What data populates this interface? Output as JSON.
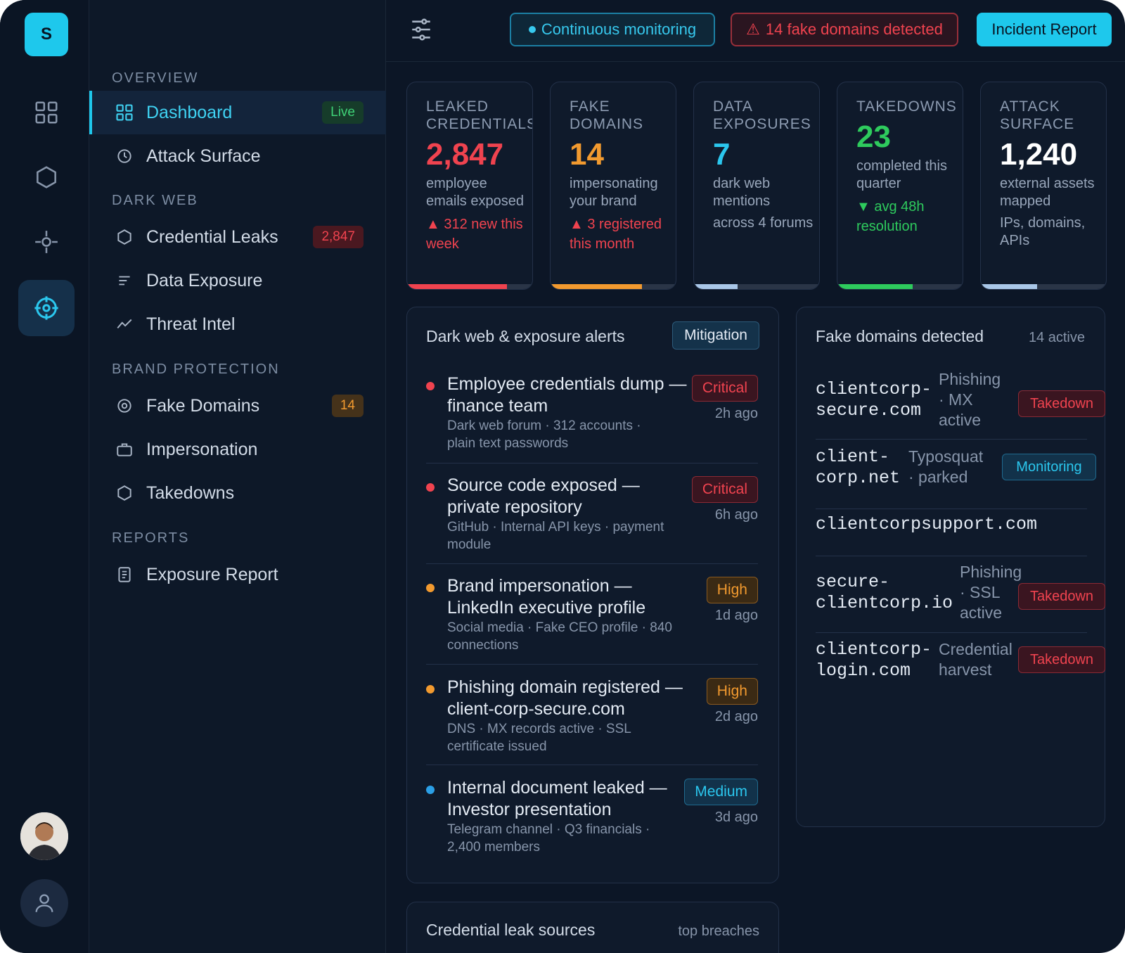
{
  "app": {
    "logo_letter": "S"
  },
  "sidebar": {
    "sections": [
      "OVERVIEW",
      "DARK WEB",
      "BRAND PROTECTION",
      "REPORTS"
    ],
    "items": [
      {
        "label": "Dashboard",
        "badge": "Live"
      },
      {
        "label": "Attack Surface"
      },
      {
        "label": "Credential Leaks",
        "badge": "2,847"
      },
      {
        "label": "Data Exposure"
      },
      {
        "label": "Threat Intel"
      },
      {
        "label": "Fake Domains",
        "badge": "14"
      },
      {
        "label": "Impersonation"
      },
      {
        "label": "Takedowns"
      },
      {
        "label": "Exposure Report"
      }
    ]
  },
  "topbar": {
    "monitoring": "Continuous monitoring",
    "fake_alert": "14 fake domains detected",
    "report_button": "Incident Report"
  },
  "stats": [
    {
      "title": "LEAKED CREDENTIALS",
      "value": "2,847",
      "sub": "employee emails exposed",
      "note": "▲ 312 new this week",
      "progress": 0.8
    },
    {
      "title": "FAKE DOMAINS",
      "value": "14",
      "sub": "impersonating your brand",
      "note": "▲ 3 registered this month",
      "progress": 0.73
    },
    {
      "title": "DATA EXPOSURES",
      "value": "7",
      "sub": "dark web mentions",
      "note": "across 4 forums",
      "progress": 0.35
    },
    {
      "title": "TAKEDOWNS",
      "value": "23",
      "sub": "completed this quarter",
      "note": "▼ avg 48h resolution",
      "progress": 0.6
    },
    {
      "title": "ATTACK SURFACE",
      "value": "1,240",
      "sub": "external assets mapped",
      "note": "IPs, domains, APIs",
      "progress": 0.45
    }
  ],
  "alerts_panel": {
    "title": "Dark web & exposure alerts",
    "button": "Mitigation",
    "alerts": [
      {
        "title": "Employee credentials dump — finance team",
        "desc": "Dark web forum · 312 accounts · plain text passwords",
        "severity": "Critical",
        "age": "2h ago"
      },
      {
        "title": "Source code exposed — private repository",
        "desc": "GitHub · Internal API keys · payment module",
        "severity": "Critical",
        "age": "6h ago"
      },
      {
        "title": "Brand impersonation — LinkedIn executive profile",
        "desc": "Social media · Fake CEO profile · 840 connections",
        "severity": "High",
        "age": "1d ago"
      },
      {
        "title": "Phishing domain registered — client-corp-secure.com",
        "desc": "DNS · MX records active · SSL certificate issued",
        "severity": "High",
        "age": "2d ago"
      },
      {
        "title": "Internal document leaked — Investor presentation",
        "desc": "Telegram channel · Q3 financials · 2,400 members",
        "severity": "Medium",
        "age": "3d ago"
      }
    ]
  },
  "domains_panel": {
    "title": "Fake domains detected",
    "count": "14 active",
    "domains": [
      {
        "name": "clientcorp-secure.com",
        "kind": "Phishing · MX active",
        "action": "Takedown"
      },
      {
        "name": "client-corp.net",
        "kind": "Typosquat · parked",
        "action": "Monitoring"
      },
      {
        "name": "clientcorpsupport.com",
        "kind": "",
        "action": ""
      },
      {
        "name": "secure-clientcorp.io",
        "kind": "Phishing · SSL active",
        "action": "Takedown"
      },
      {
        "name": "clientcorp-login.com",
        "kind": "Credential harvest",
        "action": "Takedown"
      }
    ]
  },
  "sources_panel": {
    "title": "Credential leak sources",
    "subtitle": "top breaches"
  },
  "colors": {
    "accent": "#1ec8ec",
    "critical": "#f0434f",
    "high": "#f29a2f",
    "medium": "#2bc7ee",
    "success": "#2ecb5d"
  }
}
